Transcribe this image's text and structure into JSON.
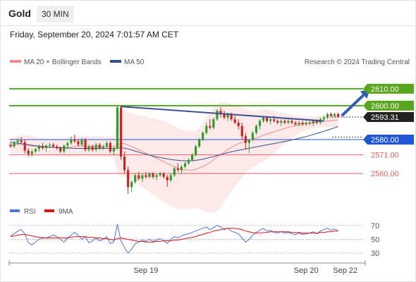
{
  "header": {
    "instrument": "Gold",
    "timeframe": "30 MIN",
    "datetime": "Friday, September 20, 2024 7:01:57 AM CET"
  },
  "legend": {
    "main": [
      {
        "label": "MA 20 + Bollinger Bands",
        "color": "#f08a8a"
      },
      {
        "label": "MA 50",
        "color": "#2f4f8f"
      }
    ],
    "rsi": [
      {
        "label": "RSI",
        "color": "#4a74d8"
      },
      {
        "label": "9MA",
        "color": "#dd1111"
      }
    ]
  },
  "watermark": "Research © 2024 Trading Central",
  "colors": {
    "up": "#2e9d2e",
    "down": "#cc2222",
    "resistance": "#5aa51e",
    "pivot": "#1f56d8",
    "support": "#e06060",
    "trendline": "#3a4f96",
    "arrow": "#2f5fb4",
    "current": "#222222"
  },
  "chart_data": [
    {
      "type": "candlestick",
      "price_axis": {
        "min": 2548,
        "max": 2622
      },
      "levels": [
        {
          "value": 2610.0,
          "label": "2610.00",
          "kind": "resistance"
        },
        {
          "value": 2600.0,
          "label": "2600.00",
          "kind": "resistance"
        },
        {
          "value": 2593.31,
          "label": "2593.31",
          "kind": "current"
        },
        {
          "value": 2580.0,
          "label": "2580.00",
          "kind": "pivot"
        },
        {
          "value": 2571.0,
          "label": "2571.00",
          "kind": "support"
        },
        {
          "value": 2560.0,
          "label": "2560.00",
          "kind": "support"
        }
      ],
      "x_ticks": [
        {
          "index": 38,
          "label": "Sep 19"
        },
        {
          "index": 83,
          "label": "Sep 20"
        },
        {
          "index": 94,
          "label": "Sep 22"
        }
      ],
      "trendline": {
        "from": [
          31,
          2599.5
        ],
        "to": [
          88,
          2591
        ]
      },
      "target_arrow": {
        "from": [
          93,
          2594
        ],
        "to": [
          101,
          2610
        ]
      },
      "candles": [
        [
          2577.0,
          2578.5,
          2575.0,
          2576.0
        ],
        [
          2576.0,
          2579.0,
          2575.0,
          2578.5
        ],
        [
          2578.5,
          2581.0,
          2577.0,
          2579.5
        ],
        [
          2579.5,
          2581.5,
          2578.0,
          2578.5
        ],
        [
          2578.5,
          2580.0,
          2572.0,
          2573.5
        ],
        [
          2573.5,
          2575.0,
          2570.0,
          2571.5
        ],
        [
          2571.5,
          2574.0,
          2570.0,
          2573.0
        ],
        [
          2573.0,
          2575.0,
          2572.0,
          2574.5
        ],
        [
          2574.5,
          2577.0,
          2573.0,
          2576.0
        ],
        [
          2576.0,
          2578.0,
          2574.0,
          2575.0
        ],
        [
          2575.0,
          2577.0,
          2573.0,
          2576.5
        ],
        [
          2576.5,
          2578.0,
          2575.0,
          2577.0
        ],
        [
          2577.0,
          2578.0,
          2575.0,
          2576.0
        ],
        [
          2576.0,
          2577.0,
          2574.0,
          2575.0
        ],
        [
          2575.0,
          2576.0,
          2572.0,
          2573.0
        ],
        [
          2573.0,
          2577.0,
          2572.0,
          2576.5
        ],
        [
          2576.5,
          2579.0,
          2575.0,
          2578.0
        ],
        [
          2578.0,
          2582.0,
          2577.0,
          2580.0
        ],
        [
          2580.0,
          2583.0,
          2578.0,
          2579.0
        ],
        [
          2579.0,
          2580.0,
          2576.0,
          2577.0
        ],
        [
          2577.0,
          2581.0,
          2576.0,
          2580.0
        ],
        [
          2580.0,
          2581.0,
          2573.0,
          2574.0
        ],
        [
          2574.0,
          2577.0,
          2573.0,
          2576.0
        ],
        [
          2576.0,
          2577.0,
          2573.0,
          2574.0
        ],
        [
          2574.0,
          2578.0,
          2573.0,
          2577.0
        ],
        [
          2577.0,
          2578.0,
          2574.0,
          2575.0
        ],
        [
          2575.0,
          2577.0,
          2574.0,
          2576.0
        ],
        [
          2576.0,
          2579.0,
          2575.0,
          2578.0
        ],
        [
          2578.0,
          2579.0,
          2572.0,
          2573.0
        ],
        [
          2573.0,
          2576.0,
          2571.0,
          2575.0
        ],
        [
          2575.0,
          2600.0,
          2574.0,
          2599.0
        ],
        [
          2599.0,
          2600.0,
          2568.0,
          2570.0
        ],
        [
          2570.0,
          2573.0,
          2560.0,
          2562.0
        ],
        [
          2562.0,
          2564.0,
          2548.0,
          2552.0
        ],
        [
          2552.0,
          2556.0,
          2549.0,
          2555.0
        ],
        [
          2555.0,
          2560.0,
          2554.0,
          2559.0
        ],
        [
          2559.0,
          2561.0,
          2556.0,
          2557.0
        ],
        [
          2557.0,
          2560.0,
          2555.0,
          2559.0
        ],
        [
          2559.0,
          2561.0,
          2557.0,
          2558.0
        ],
        [
          2558.0,
          2561.0,
          2557.0,
          2560.0
        ],
        [
          2560.0,
          2561.0,
          2557.0,
          2558.0
        ],
        [
          2558.0,
          2560.0,
          2556.0,
          2559.0
        ],
        [
          2559.0,
          2561.0,
          2558.0,
          2560.0
        ],
        [
          2560.0,
          2561.0,
          2557.0,
          2558.0
        ],
        [
          2558.0,
          2559.0,
          2552.0,
          2556.0
        ],
        [
          2556.0,
          2560.0,
          2555.0,
          2559.0
        ],
        [
          2559.0,
          2564.0,
          2558.0,
          2563.0
        ],
        [
          2563.0,
          2566.0,
          2561.0,
          2562.0
        ],
        [
          2562.0,
          2565.0,
          2560.0,
          2564.0
        ],
        [
          2564.0,
          2567.0,
          2563.0,
          2566.0
        ],
        [
          2566.0,
          2569.0,
          2565.0,
          2568.0
        ],
        [
          2568.0,
          2572.0,
          2567.0,
          2571.0
        ],
        [
          2571.0,
          2577.0,
          2570.0,
          2576.0
        ],
        [
          2576.0,
          2581.0,
          2575.0,
          2580.0
        ],
        [
          2580.0,
          2585.0,
          2579.0,
          2584.0
        ],
        [
          2584.0,
          2590.0,
          2583.0,
          2588.0
        ],
        [
          2588.0,
          2592.0,
          2586.0,
          2587.0
        ],
        [
          2587.0,
          2593.0,
          2586.0,
          2592.0
        ],
        [
          2592.0,
          2598.0,
          2591.0,
          2597.0
        ],
        [
          2597.0,
          2599.0,
          2593.0,
          2595.0
        ],
        [
          2595.0,
          2597.0,
          2592.0,
          2593.0
        ],
        [
          2593.0,
          2596.0,
          2591.0,
          2595.0
        ],
        [
          2595.0,
          2596.0,
          2591.0,
          2592.0
        ],
        [
          2592.0,
          2594.0,
          2589.0,
          2590.0
        ],
        [
          2590.0,
          2592.0,
          2586.0,
          2588.0
        ],
        [
          2588.0,
          2590.0,
          2580.0,
          2582.0
        ],
        [
          2582.0,
          2584.0,
          2574.0,
          2578.0
        ],
        [
          2578.0,
          2580.0,
          2572.0,
          2580.0
        ],
        [
          2580.0,
          2585.0,
          2579.0,
          2584.0
        ],
        [
          2584.0,
          2589.0,
          2583.0,
          2588.0
        ],
        [
          2588.0,
          2592.0,
          2586.0,
          2591.0
        ],
        [
          2591.0,
          2594.0,
          2590.0,
          2593.0
        ],
        [
          2593.0,
          2594.0,
          2590.0,
          2591.0
        ],
        [
          2591.0,
          2593.0,
          2589.0,
          2592.0
        ],
        [
          2592.0,
          2594.0,
          2590.0,
          2591.0
        ],
        [
          2591.0,
          2592.0,
          2589.0,
          2590.0
        ],
        [
          2590.0,
          2592.0,
          2588.0,
          2591.0
        ],
        [
          2591.0,
          2592.0,
          2589.0,
          2590.0
        ],
        [
          2590.0,
          2592.0,
          2589.0,
          2591.0
        ],
        [
          2591.0,
          2592.0,
          2589.0,
          2590.0
        ],
        [
          2590.0,
          2591.0,
          2588.0,
          2589.0
        ],
        [
          2589.0,
          2591.0,
          2588.0,
          2590.0
        ],
        [
          2590.0,
          2591.0,
          2588.0,
          2589.0
        ],
        [
          2589.0,
          2591.0,
          2588.0,
          2590.0
        ],
        [
          2590.0,
          2591.0,
          2588.5,
          2589.5
        ],
        [
          2589.5,
          2592.0,
          2588.0,
          2591.0
        ],
        [
          2591.0,
          2592.0,
          2589.0,
          2590.0
        ],
        [
          2590.0,
          2593.0,
          2589.0,
          2592.0
        ],
        [
          2592.0,
          2594.0,
          2591.0,
          2593.0
        ],
        [
          2593.0,
          2596.0,
          2592.0,
          2595.0
        ],
        [
          2595.0,
          2596.0,
          2593.0,
          2594.0
        ],
        [
          2594.0,
          2596.0,
          2593.0,
          2595.0
        ],
        [
          2595.0,
          2596.0,
          2593.0,
          2593.3
        ]
      ],
      "ma20": [
        2576.5,
        2576.8,
        2577.1,
        2577.3,
        2577.0,
        2576.6,
        2576.2,
        2575.9,
        2575.7,
        2575.6,
        2575.5,
        2575.5,
        2575.5,
        2575.4,
        2575.3,
        2575.3,
        2575.4,
        2575.7,
        2576.0,
        2576.1,
        2576.3,
        2576.2,
        2576.0,
        2575.9,
        2575.9,
        2575.9,
        2575.9,
        2576.0,
        2575.9,
        2575.8,
        2577.0,
        2577.8,
        2577.6,
        2576.8,
        2575.8,
        2575.0,
        2574.0,
        2573.0,
        2572.0,
        2571.0,
        2570.0,
        2569.0,
        2568.0,
        2567.0,
        2566.0,
        2565.0,
        2564.0,
        2563.0,
        2562.5,
        2562.2,
        2562.0,
        2562.0,
        2562.5,
        2563.2,
        2564.1,
        2565.2,
        2566.5,
        2568.0,
        2569.6,
        2571.1,
        2572.6,
        2574.0,
        2575.4,
        2576.6,
        2577.6,
        2578.3,
        2579.0,
        2579.6,
        2580.3,
        2581.0,
        2581.8,
        2582.6,
        2583.3,
        2583.9,
        2584.6,
        2585.3,
        2586.0,
        2586.6,
        2587.2,
        2587.8,
        2588.3,
        2588.7,
        2589.1,
        2589.5,
        2589.8,
        2590.1,
        2590.4,
        2590.6,
        2590.8,
        2591.0,
        2591.2,
        2591.4,
        2591.6
      ],
      "bb_upper": [
        2581,
        2581.5,
        2582,
        2582.5,
        2582.5,
        2582.5,
        2582,
        2581.5,
        2581,
        2580.5,
        2580.5,
        2580.5,
        2580.5,
        2580.5,
        2580.5,
        2580.5,
        2581,
        2581.5,
        2582,
        2582,
        2582,
        2582,
        2582,
        2582,
        2582,
        2582,
        2582,
        2582,
        2582,
        2582,
        2594,
        2598,
        2597,
        2596,
        2595.5,
        2595,
        2594.5,
        2594,
        2593.5,
        2593,
        2592.5,
        2592,
        2591.5,
        2591,
        2590,
        2589,
        2588,
        2587,
        2586,
        2585.5,
        2585,
        2585,
        2585.5,
        2587,
        2590,
        2593,
        2596,
        2599,
        2601,
        2602,
        2602,
        2601.5,
        2601,
        2600.5,
        2600,
        2599,
        2598,
        2597.5,
        2597,
        2597,
        2597.5,
        2598,
        2598,
        2597.5,
        2597,
        2596.5,
        2596,
        2595.5,
        2595,
        2594.5,
        2594,
        2593.8,
        2593.6,
        2593.5,
        2593.5,
        2593.6,
        2593.8,
        2594,
        2594.3,
        2594.7,
        2595,
        2595.3,
        2595.6
      ],
      "bb_lower": [
        2572,
        2572,
        2572,
        2572,
        2571.5,
        2570.7,
        2570.4,
        2570.3,
        2570.4,
        2570.7,
        2570.5,
        2570.5,
        2570.5,
        2570.3,
        2570.1,
        2570.1,
        2569.8,
        2569.9,
        2570,
        2570.2,
        2570.6,
        2570.4,
        2570,
        2569.8,
        2569.8,
        2569.8,
        2569.8,
        2570,
        2569.8,
        2569.6,
        2560,
        2557.6,
        2558.2,
        2557.6,
        2556.1,
        2555,
        2553.5,
        2552,
        2550.5,
        2549,
        2547.5,
        2546,
        2544.5,
        2543,
        2542,
        2541,
        2540,
        2539,
        2539,
        2538.9,
        2539,
        2539,
        2539.5,
        2539.4,
        2538.2,
        2537.4,
        2537,
        2537,
        2538.2,
        2540.2,
        2543.2,
        2546.5,
        2549.8,
        2552.7,
        2555.2,
        2557.6,
        2560,
        2561.7,
        2563.6,
        2565,
        2566.1,
        2567.2,
        2568.6,
        2570.3,
        2572.2,
        2574.1,
        2576,
        2577.7,
        2579.4,
        2581.1,
        2582.6,
        2583.6,
        2584.6,
        2585.5,
        2586.1,
        2586.6,
        2587,
        2587.2,
        2587.3,
        2587.3,
        2587.4,
        2587.5,
        2587.6
      ],
      "ma50": [
        2578.5,
        2578.2,
        2577.9,
        2577.6,
        2577.3,
        2577.0,
        2576.7,
        2576.4,
        2576.2,
        2576.0,
        2575.8,
        2575.6,
        2575.4,
        2575.3,
        2575.2,
        2575.1,
        2575.0,
        2574.9,
        2574.8,
        2574.8,
        2574.8,
        2574.8,
        2574.8,
        2574.8,
        2574.8,
        2574.8,
        2574.8,
        2574.8,
        2574.8,
        2574.8,
        2575.0,
        2575.2,
        2575.0,
        2574.5,
        2573.8,
        2573.2,
        2572.6,
        2572.0,
        2571.4,
        2570.8,
        2570.3,
        2569.8,
        2569.4,
        2569.0,
        2568.6,
        2568.3,
        2568.0,
        2567.8,
        2567.6,
        2567.5,
        2567.5,
        2567.6,
        2567.8,
        2568.1,
        2568.5,
        2569.0,
        2569.5,
        2570.0,
        2570.6,
        2571.2,
        2571.8,
        2572.3,
        2572.8,
        2573.3,
        2573.7,
        2574.1,
        2574.5,
        2574.9,
        2575.3,
        2575.7,
        2576.1,
        2576.5,
        2576.9,
        2577.3,
        2577.7,
        2578.1,
        2578.5,
        2578.9,
        2579.3,
        2579.8,
        2580.3,
        2580.8,
        2581.3,
        2581.8,
        2582.4,
        2583.0,
        2583.6,
        2584.2,
        2584.9,
        2585.6,
        2586.3,
        2587.0,
        2587.7
      ]
    },
    {
      "type": "line",
      "y_ticks": [
        70,
        50,
        30
      ],
      "ylim": [
        20,
        80
      ],
      "series": [
        {
          "name": "RSI",
          "values": [
            55,
            58,
            62,
            64,
            58,
            45,
            42,
            46,
            50,
            53,
            52,
            54,
            56,
            54,
            50,
            46,
            52,
            56,
            60,
            56,
            50,
            54,
            45,
            48,
            52,
            48,
            50,
            54,
            44,
            46,
            72,
            48,
            38,
            30,
            36,
            44,
            46,
            49,
            47,
            50,
            47,
            49,
            51,
            48,
            44,
            50,
            54,
            52,
            55,
            57,
            58,
            60,
            62,
            64,
            66,
            68,
            64,
            67,
            70,
            68,
            64,
            66,
            62,
            60,
            58,
            52,
            46,
            50,
            56,
            60,
            63,
            66,
            62,
            63,
            60,
            59,
            61,
            59,
            60,
            58,
            57,
            59,
            57,
            58,
            59,
            61,
            58,
            62,
            64,
            66,
            63,
            65,
            62
          ]
        },
        {
          "name": "9MA",
          "values": [
            54,
            55,
            56,
            57,
            57,
            56,
            55,
            54,
            53,
            52,
            52,
            52,
            52,
            52,
            52,
            52,
            52,
            53,
            54,
            54,
            54,
            54,
            53,
            53,
            52,
            52,
            51,
            51,
            50,
            49,
            51,
            52,
            51,
            50,
            49,
            48,
            47,
            47,
            46,
            46,
            46,
            47,
            47,
            48,
            48,
            48,
            49,
            49,
            50,
            51,
            52,
            53,
            54,
            56,
            57,
            59,
            60,
            62,
            63,
            64,
            65,
            66,
            66,
            66,
            65,
            64,
            62,
            61,
            60,
            59,
            59,
            60,
            60,
            61,
            61,
            61,
            61,
            61,
            61,
            60,
            60,
            60,
            59,
            59,
            59,
            59,
            59,
            60,
            60,
            61,
            61,
            62,
            62
          ]
        }
      ]
    }
  ]
}
